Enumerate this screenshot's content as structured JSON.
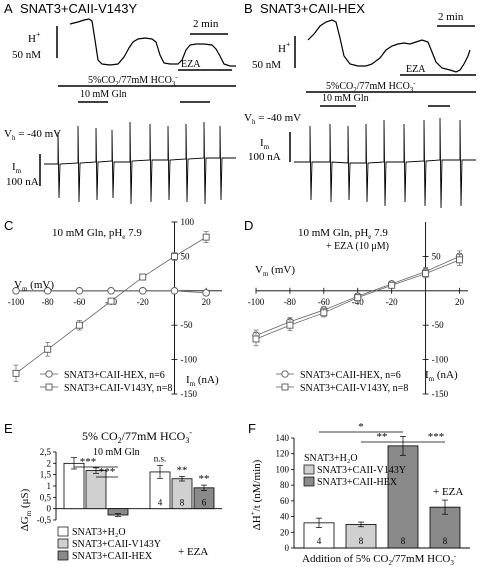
{
  "panelA": {
    "letter": "A",
    "title": "SNAT3+CAII-V143Y",
    "time_bar": "2 min",
    "h_label": "H",
    "h_sup": "+",
    "h_scale": "50 nM",
    "eza": "EZA",
    "co2": "5%CO",
    "co2_sub": "2",
    "co2_rest": "/77mM HCO",
    "hco3_sub": "3",
    "hco3_sup": "-",
    "gln": "10 mM Gln",
    "vh_main": "V",
    "vh_sub": "h",
    "vh_rest": " = -40 mV",
    "im_main": "I",
    "im_sub": "m",
    "im_scale": "100 nA"
  },
  "panelB": {
    "letter": "B",
    "title": "SNAT3+CAII-HEX",
    "time_bar": "2 min",
    "h_label": "H",
    "h_sup": "+",
    "h_scale": "50 nM",
    "eza": "EZA",
    "co2": "5%CO",
    "co2_sub": "2",
    "co2_rest": "/77mM HCO",
    "hco3_sub": "3",
    "hco3_sup": "-",
    "gln": "10 mM Gln",
    "vh_main": "V",
    "vh_sub": "h",
    "vh_rest": " = -40 mV",
    "im_main": "I",
    "im_sub": "m",
    "im_scale": "100 nA"
  },
  "chart_data": [
    {
      "panel": "C",
      "type": "scatter",
      "title": "10 mM Gln, pH",
      "title_sub": "e",
      "title_rest": " 7.9",
      "xlabel": "V",
      "xlabel_sub": "m",
      "xlabel_unit": " (mV)",
      "ylabel": "I",
      "ylabel_sub": "m",
      "ylabel_unit": " (nA)",
      "xlim": [
        -100,
        30
      ],
      "ylim": [
        -150,
        100
      ],
      "x_ticks": [
        -100,
        -80,
        -60,
        -40,
        -20,
        20
      ],
      "y_ticks": [
        -150,
        -100,
        -50,
        50,
        100
      ],
      "x_tick_labels": [
        "-100",
        "-80",
        "-60",
        "-40",
        "-20",
        "20"
      ],
      "y_tick_labels": [
        "-150",
        "-100",
        "-50",
        "50",
        "100"
      ],
      "series": [
        {
          "name": "SNAT3+CAII-HEX, n=6",
          "marker": "circle",
          "x": [
            -100,
            -80,
            -60,
            -40,
            -20,
            0,
            20
          ],
          "y": [
            0,
            0,
            0,
            0,
            0,
            0,
            -3
          ],
          "err": [
            2,
            2,
            2,
            2,
            2,
            2,
            4
          ]
        },
        {
          "name": "SNAT3+CAII-V143Y, n=8",
          "marker": "square",
          "x": [
            -100,
            -80,
            -60,
            -40,
            -20,
            0,
            20
          ],
          "y": [
            -120,
            -85,
            -50,
            -15,
            20,
            50,
            78
          ],
          "err": [
            12,
            10,
            7,
            4,
            4,
            6,
            8
          ]
        }
      ]
    },
    {
      "panel": "D",
      "type": "scatter",
      "title": "10 mM Gln, pH",
      "title_sub": "e",
      "title_rest": " 7.9",
      "subtitle": "+ EZA (10 μM)",
      "xlabel": "V",
      "xlabel_sub": "m",
      "xlabel_unit": " (mV)",
      "ylabel": "I",
      "ylabel_sub": "m",
      "ylabel_unit": " (nA)",
      "xlim": [
        -100,
        25
      ],
      "ylim": [
        -150,
        100
      ],
      "x_ticks": [
        -100,
        -80,
        -60,
        -40,
        -20,
        20
      ],
      "y_ticks": [
        -150,
        -100,
        -50,
        50
      ],
      "x_tick_labels": [
        "-100",
        "-80",
        "-60",
        "-40",
        "-20",
        "20"
      ],
      "y_tick_labels": [
        "-150",
        "-100",
        "-50",
        "50"
      ],
      "series": [
        {
          "name": "SNAT3+CAII-HEX, n=6",
          "marker": "circle",
          "x": [
            -100,
            -80,
            -60,
            -40,
            -20,
            0,
            20
          ],
          "y": [
            -65,
            -45,
            -28,
            -8,
            10,
            28,
            50
          ],
          "err": [
            8,
            6,
            5,
            4,
            4,
            6,
            8
          ]
        },
        {
          "name": "SNAT3+CAII-V143Y, n=8",
          "marker": "square",
          "x": [
            -100,
            -80,
            -60,
            -40,
            -20,
            0,
            20
          ],
          "y": [
            -70,
            -50,
            -32,
            -10,
            8,
            25,
            45
          ],
          "err": [
            10,
            8,
            6,
            4,
            4,
            6,
            8
          ]
        }
      ]
    },
    {
      "panel": "E",
      "type": "bar",
      "title": "5% CO",
      "title_sub": "2",
      "title_rest": "/77mM HCO",
      "title_sub2": "3",
      "title_sup": "-",
      "subtitle": "10 mM Gln",
      "ylabel": "ΔG",
      "ylabel_sub": "m",
      "ylabel_unit": " (μS)",
      "ylim": [
        -0.5,
        2.5
      ],
      "y_ticks": [
        -0.5,
        0,
        0.5,
        1,
        1.5,
        2,
        2.5
      ],
      "y_tick_labels": [
        "-0,5",
        "0",
        "0,5",
        "1",
        "1,5",
        "2",
        "2,5"
      ],
      "group_label": "+ EZA",
      "legend": [
        "SNAT3+H₂O",
        "SNAT3+CAII-V143Y",
        "SNAT3+CAII-HEX"
      ],
      "series": [
        {
          "name": "SNAT3+H₂O",
          "color": "#ffffff",
          "values": [
            2.0,
            1.62
          ],
          "err": [
            0.25,
            0.28
          ],
          "n": [
            "",
            "4"
          ]
        },
        {
          "name": "SNAT3+CAII-V143Y",
          "color": "#d0d0d0",
          "values": [
            1.68,
            1.32
          ],
          "err": [
            0.12,
            0.1
          ],
          "n": [
            "",
            "8"
          ]
        },
        {
          "name": "SNAT3+CAII-HEX",
          "color": "#8a8a8a",
          "values": [
            -0.28,
            0.92
          ],
          "err": [
            0.06,
            0.12
          ],
          "n": [
            "",
            "6"
          ]
        }
      ],
      "significance": [
        {
          "label": "***"
        },
        {
          "label": "***"
        },
        {
          "label": "n.s."
        },
        {
          "label": "**"
        },
        {
          "label": "**"
        }
      ]
    },
    {
      "panel": "F",
      "type": "bar",
      "ylabel": "ΔH",
      "ylabel_sup": "+",
      "ylabel_rest": "/t (nM/min)",
      "ylim": [
        0,
        140
      ],
      "y_ticks": [
        0,
        20,
        40,
        60,
        80,
        100,
        120,
        140
      ],
      "y_tick_labels": [
        "0",
        "20",
        "40",
        "60",
        "80",
        "100",
        "120",
        "140"
      ],
      "xlabel": "Addition of  5% CO",
      "xlabel_sub": "2",
      "xlabel_rest": "/77mM HCO",
      "xlabel_sub2": "3",
      "xlabel_sup": "-",
      "legend": [
        "SNAT3+H₂O",
        "SNAT3+CAII-V143Y",
        "SNAT3+CAII-HEX"
      ],
      "annotation": "+ EZA",
      "categories": [
        "SNAT3+H₂O",
        "SNAT3+CAII-V143Y",
        "SNAT3+CAII-HEX",
        "SNAT3+CAII-HEX + EZA"
      ],
      "values": [
        32,
        30,
        130,
        52
      ],
      "err": [
        6,
        3,
        12,
        9
      ],
      "n": [
        "4",
        "8",
        "8",
        "8"
      ],
      "colors": [
        "#ffffff",
        "#d0d0d0",
        "#8a8a8a",
        "#8a8a8a"
      ],
      "significance": [
        {
          "label": "*"
        },
        {
          "label": "**"
        },
        {
          "label": "***"
        }
      ]
    }
  ]
}
